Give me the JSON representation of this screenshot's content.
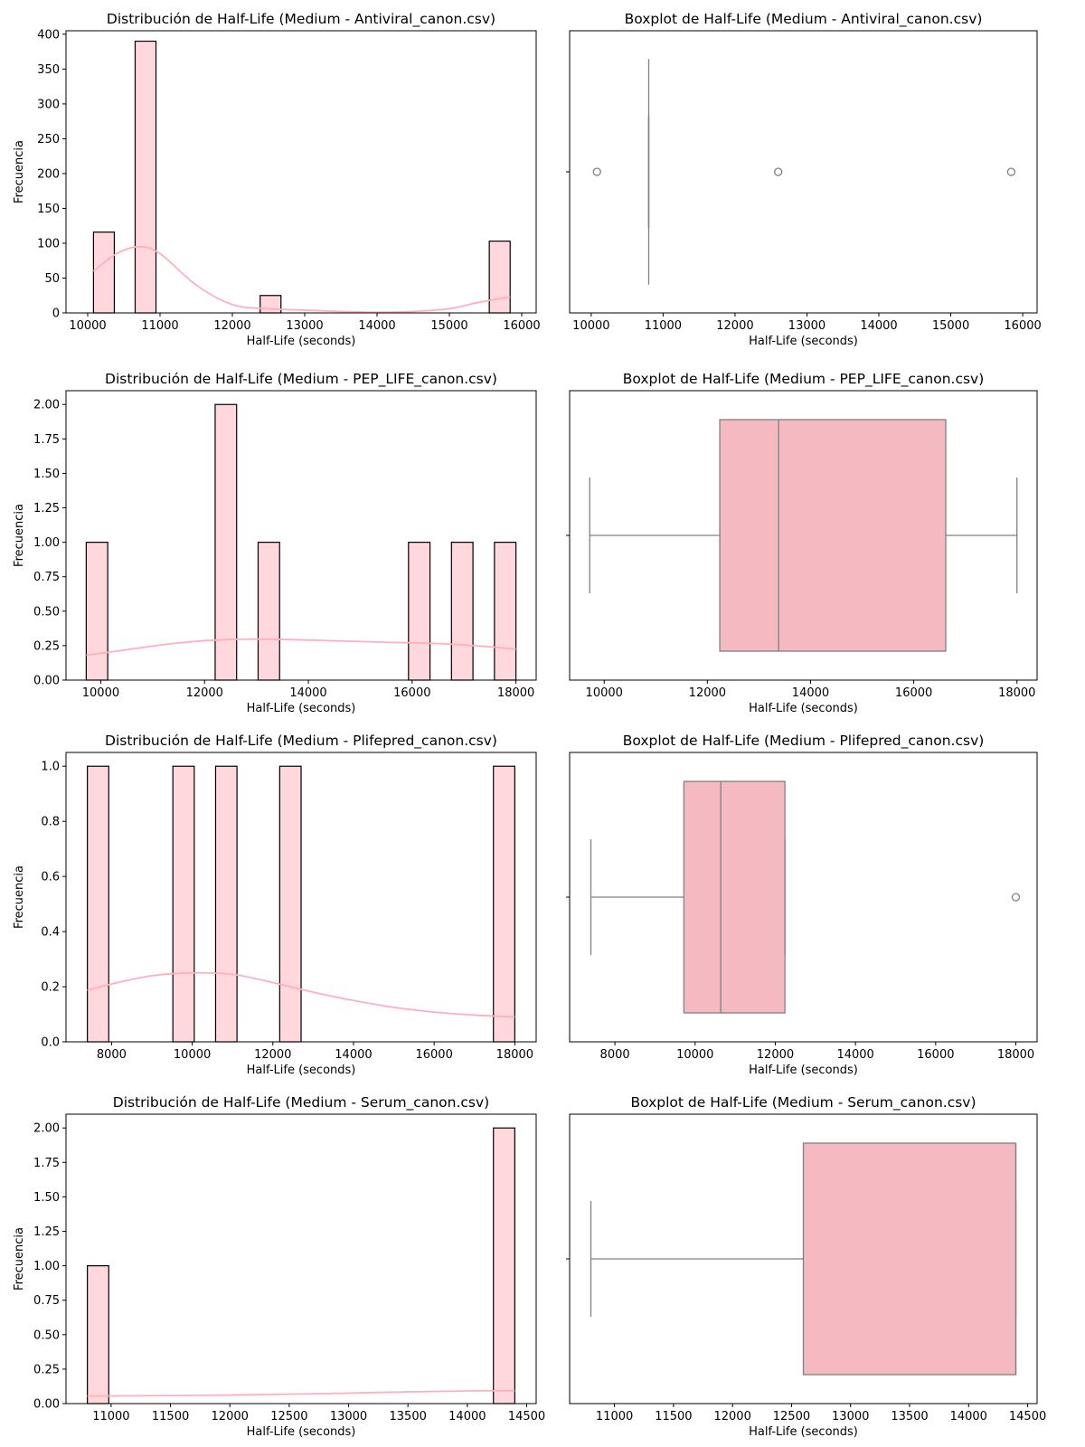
{
  "chart_data": [
    {
      "type": "histogram",
      "title": "Distribución de Half-Life (Medium - Antiviral_canon.csv)",
      "xlabel": "Half-Life (seconds)",
      "ylabel": "Frecuencia",
      "xlim": [
        9700,
        16200
      ],
      "ylim": [
        0,
        405
      ],
      "xticks": [
        10000,
        11000,
        12000,
        13000,
        14000,
        15000,
        16000
      ],
      "yticks": [
        0,
        50,
        100,
        150,
        200,
        250,
        300,
        350,
        400
      ],
      "bars": [
        {
          "x0": 10080,
          "x1": 10368,
          "count": 116
        },
        {
          "x0": 10656,
          "x1": 10944,
          "count": 390
        },
        {
          "x0": 12384,
          "x1": 12672,
          "count": 25
        },
        {
          "x0": 15552,
          "x1": 15840,
          "count": 103
        }
      ],
      "kde": {
        "x": [
          10080,
          10400,
          10700,
          11000,
          11500,
          12000,
          12500,
          13000,
          13500,
          14000,
          14500,
          15000,
          15400,
          15840
        ],
        "y": [
          60,
          85,
          95,
          85,
          40,
          12,
          6,
          4,
          2,
          1,
          2,
          6,
          15,
          23
        ]
      }
    },
    {
      "type": "boxplot",
      "title": "Boxplot de Half-Life (Medium - Antiviral_canon.csv)",
      "xlabel": "Half-Life (seconds)",
      "xlim": [
        9700,
        16200
      ],
      "xticks": [
        10000,
        11000,
        12000,
        13000,
        14000,
        15000,
        16000
      ],
      "box": {
        "whislo": 10800,
        "q1": 10800,
        "med": 10800,
        "q3": 10800,
        "whishi": 10800
      },
      "fliers": [
        10080,
        12600,
        15840
      ]
    },
    {
      "type": "histogram",
      "title": "Distribución de Half-Life (Medium - PEP_LIFE_canon.csv)",
      "xlabel": "Half-Life (seconds)",
      "ylabel": "Frecuencia",
      "xlim": [
        9330,
        18390
      ],
      "ylim": [
        0,
        2.1
      ],
      "xticks": [
        10000,
        12000,
        14000,
        16000,
        18000
      ],
      "yticks": [
        0.0,
        0.25,
        0.5,
        0.75,
        1.0,
        1.25,
        1.5,
        1.75,
        2.0
      ],
      "yticklabels": [
        "0.00",
        "0.25",
        "0.50",
        "0.75",
        "1.00",
        "1.25",
        "1.50",
        "1.75",
        "2.00"
      ],
      "bars": [
        {
          "x0": 9720,
          "x1": 10134,
          "count": 1
        },
        {
          "x0": 12204,
          "x1": 12618,
          "count": 2
        },
        {
          "x0": 13032,
          "x1": 13446,
          "count": 1
        },
        {
          "x0": 15930,
          "x1": 16344,
          "count": 1
        },
        {
          "x0": 16758,
          "x1": 17172,
          "count": 1
        },
        {
          "x0": 17586,
          "x1": 18000,
          "count": 1
        }
      ],
      "kde": {
        "x": [
          9720,
          10500,
          11500,
          12500,
          13500,
          14500,
          15500,
          16500,
          17200,
          18000
        ],
        "y": [
          0.18,
          0.22,
          0.27,
          0.295,
          0.295,
          0.285,
          0.275,
          0.265,
          0.25,
          0.225
        ]
      }
    },
    {
      "type": "boxplot",
      "title": "Boxplot de Half-Life (Medium - PEP_LIFE_canon.csv)",
      "xlabel": "Half-Life (seconds)",
      "xlim": [
        9330,
        18390
      ],
      "xticks": [
        10000,
        12000,
        14000,
        16000,
        18000
      ],
      "box": {
        "whislo": 9720,
        "q1": 12240,
        "med": 13380,
        "q3": 16620,
        "whishi": 18000
      },
      "fliers": []
    },
    {
      "type": "histogram",
      "title": "Distribución de Half-Life (Medium - Plifepred_canon.csv)",
      "xlabel": "Half-Life (seconds)",
      "ylabel": "Frecuencia",
      "xlim": [
        6870,
        18530
      ],
      "ylim": [
        0,
        1.05
      ],
      "xticks": [
        8000,
        10000,
        12000,
        14000,
        16000,
        18000
      ],
      "yticks": [
        0.0,
        0.2,
        0.4,
        0.6,
        0.8,
        1.0
      ],
      "yticklabels": [
        "0.0",
        "0.2",
        "0.4",
        "0.6",
        "0.8",
        "1.0"
      ],
      "bars": [
        {
          "x0": 7400,
          "x1": 7930,
          "count": 1
        },
        {
          "x0": 9520,
          "x1": 10050,
          "count": 1
        },
        {
          "x0": 10580,
          "x1": 11110,
          "count": 1
        },
        {
          "x0": 12170,
          "x1": 12700,
          "count": 1
        },
        {
          "x0": 17470,
          "x1": 18000,
          "count": 1
        }
      ],
      "kde": {
        "x": [
          7400,
          8000,
          9000,
          10000,
          11000,
          12000,
          13000,
          14000,
          15000,
          16000,
          17000,
          18000
        ],
        "y": [
          0.187,
          0.21,
          0.24,
          0.25,
          0.245,
          0.215,
          0.18,
          0.15,
          0.125,
          0.108,
          0.097,
          0.09
        ]
      }
    },
    {
      "type": "boxplot",
      "title": "Boxplot de Half-Life (Medium - Plifepred_canon.csv)",
      "xlabel": "Half-Life (seconds)",
      "xlim": [
        6870,
        18530
      ],
      "xticks": [
        8000,
        10000,
        12000,
        14000,
        16000,
        18000
      ],
      "box": {
        "whislo": 7400,
        "q1": 9720,
        "med": 10640,
        "q3": 12240,
        "whishi": 12240
      },
      "fliers": [
        18000
      ]
    },
    {
      "type": "histogram",
      "title": "Distribución de Half-Life (Medium - Serum_canon.csv)",
      "xlabel": "Half-Life (seconds)",
      "ylabel": "Frecuencia",
      "xlim": [
        10620,
        14580
      ],
      "ylim": [
        0,
        2.1
      ],
      "xticks": [
        11000,
        11500,
        12000,
        12500,
        13000,
        13500,
        14000,
        14500
      ],
      "yticks": [
        0.0,
        0.25,
        0.5,
        0.75,
        1.0,
        1.25,
        1.5,
        1.75,
        2.0
      ],
      "yticklabels": [
        "0.00",
        "0.25",
        "0.50",
        "0.75",
        "1.00",
        "1.25",
        "1.50",
        "1.75",
        "2.00"
      ],
      "bars": [
        {
          "x0": 10800,
          "x1": 10980,
          "count": 1
        },
        {
          "x0": 14220,
          "x1": 14400,
          "count": 2
        }
      ],
      "kde": {
        "x": [
          10800,
          11500,
          12000,
          12500,
          13000,
          13500,
          14000,
          14400
        ],
        "y": [
          0.055,
          0.058,
          0.062,
          0.068,
          0.076,
          0.085,
          0.092,
          0.094
        ]
      }
    },
    {
      "type": "boxplot",
      "title": "Boxplot de Half-Life (Medium - Serum_canon.csv)",
      "xlabel": "Half-Life (seconds)",
      "xlim": [
        10620,
        14580
      ],
      "xticks": [
        11000,
        11500,
        12000,
        12500,
        13000,
        13500,
        14000,
        14500
      ],
      "box": {
        "whislo": 10800,
        "q1": 12600,
        "med": 14400,
        "q3": 14400,
        "whishi": 14400
      },
      "fliers": []
    }
  ],
  "colors": {
    "hist_fill": "#ffd8dd",
    "hist_edge": "#000000",
    "kde_line": "#ffb0ba",
    "box_fill": "#f5b9c1",
    "box_edge": "#808080"
  }
}
